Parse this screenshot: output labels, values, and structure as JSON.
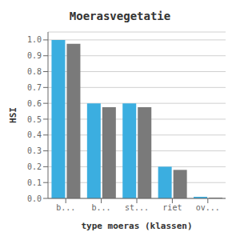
{
  "chart_data": {
    "type": "bar",
    "title": "Moerasvegetatie",
    "xlabel": "type moeras (klassen)",
    "ylabel": "HSI",
    "categories": [
      "b...",
      "b...",
      "st...",
      "riet",
      "ov..."
    ],
    "series": [
      {
        "color": "#3BAEE0",
        "values": [
          1.0,
          0.6,
          0.6,
          0.2,
          0.01
        ]
      },
      {
        "color": "#7A7A7A",
        "values": [
          0.975,
          0.575,
          0.575,
          0.18,
          0.005
        ]
      }
    ],
    "ylim": [
      0.0,
      1.05
    ],
    "yticks": [
      {
        "value": 0.0,
        "label": "0.0"
      },
      0.1,
      0.2,
      0.3,
      0.4,
      0.5,
      0.6,
      0.7,
      0.8,
      0.9,
      {
        "value": 1.0,
        "label": "1.0"
      }
    ],
    "grid": true
  }
}
